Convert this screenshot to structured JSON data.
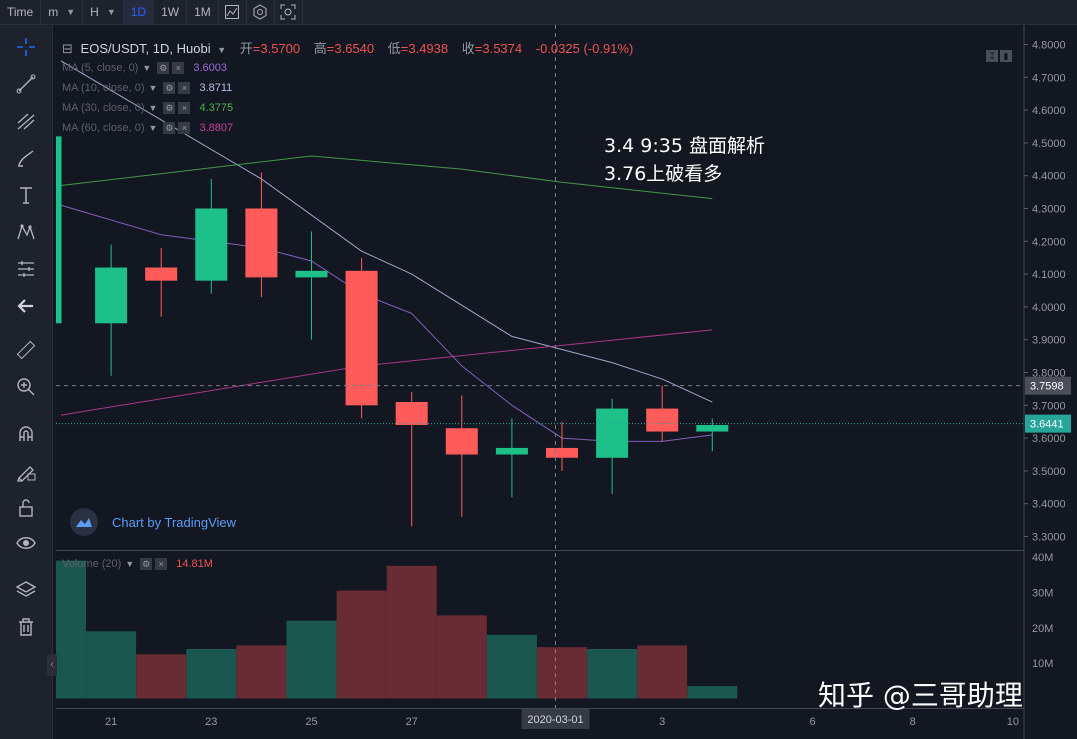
{
  "toolbar": {
    "time_label": "Time",
    "items": [
      "m",
      "H",
      "1D",
      "1W",
      "1M"
    ],
    "active": "1D",
    "icons": [
      "bar-style-icon",
      "indicators-icon",
      "screenshot-icon"
    ]
  },
  "left_tools": [
    "crosshair-icon",
    "trend-line-icon",
    "pitchfork-icon",
    "brush-icon",
    "text-icon",
    "pattern-icon",
    "forecast-icon",
    "back-arrow-icon",
    "ruler-icon",
    "zoom-in-icon",
    "magnet-icon",
    "lock-pencil-icon",
    "unlock-icon",
    "eye-icon",
    "layers-icon",
    "trash-icon"
  ],
  "legend": {
    "symbol": "EOS/USDT, 1D, Huobi",
    "open_label": "开",
    "open": "3.5700",
    "high_label": "高",
    "high": "3.6540",
    "low_label": "低",
    "low": "3.4938",
    "close_label": "收",
    "close": "3.5374",
    "change": "-0.0325 (-0.91%)"
  },
  "ma_legend": [
    {
      "label": "MA (5, close, 0)",
      "value": "3.6003",
      "color": "#9c6bd6"
    },
    {
      "label": "MA (10, close, 0)",
      "value": "3.8711",
      "color": "#b3c1e6"
    },
    {
      "label": "MA (30, close, 0)",
      "value": "4.3775",
      "color": "#4caf50"
    },
    {
      "label": "MA (60, close, 0)",
      "value": "3.8807",
      "color": "#c2409c"
    }
  ],
  "annotation": {
    "line1": "3.4 9:35 盘面解析",
    "line2": "3.76上破看多"
  },
  "brand": "Chart by TradingView",
  "watermark": "知乎 @三哥助理",
  "volume_legend": {
    "label": "Volume (20)",
    "value": "14.81M"
  },
  "price_badges": {
    "dashed": "3.7598",
    "current": "3.6441"
  },
  "crosshair_date": "2020-03-01",
  "colors": {
    "up": "#26a69a",
    "down": "#ef5350",
    "up_body": "#1ec08a",
    "down_body": "#ff5b5b",
    "bg": "#131722"
  },
  "chart_data": {
    "type": "candlestick",
    "title": "EOS/USDT, 1D, Huobi",
    "ylim": [
      3.22,
      4.83
    ],
    "y_ticks": [
      "4.8000",
      "4.7000",
      "4.6000",
      "4.5000",
      "4.4000",
      "4.3000",
      "4.2000",
      "4.1000",
      "4.0000",
      "3.9000",
      "3.8000",
      "3.7000",
      "3.6000",
      "3.5000",
      "3.4000",
      "3.3000"
    ],
    "x_ticks": [
      {
        "label": "21",
        "i": 1
      },
      {
        "label": "23",
        "i": 3
      },
      {
        "label": "25",
        "i": 5
      },
      {
        "label": "27",
        "i": 7
      },
      {
        "label": "3",
        "i": 12
      },
      {
        "label": "6",
        "i": 15
      },
      {
        "label": "8",
        "i": 17
      },
      {
        "label": "10",
        "i": 19
      }
    ],
    "candles": [
      {
        "i": 0,
        "open": 3.95,
        "high": 4.52,
        "low": 3.95,
        "close": 4.52
      },
      {
        "i": 1,
        "open": 3.95,
        "high": 4.19,
        "low": 3.79,
        "close": 4.12
      },
      {
        "i": 2,
        "open": 4.12,
        "high": 4.18,
        "low": 3.97,
        "close": 4.08
      },
      {
        "i": 3,
        "open": 4.08,
        "high": 4.39,
        "low": 4.04,
        "close": 4.3
      },
      {
        "i": 4,
        "open": 4.3,
        "high": 4.41,
        "low": 4.03,
        "close": 4.09
      },
      {
        "i": 5,
        "open": 4.09,
        "high": 4.23,
        "low": 3.9,
        "close": 4.11
      },
      {
        "i": 6,
        "open": 4.11,
        "high": 4.15,
        "low": 3.66,
        "close": 3.7
      },
      {
        "i": 7,
        "open": 3.71,
        "high": 3.74,
        "low": 3.33,
        "close": 3.64
      },
      {
        "i": 8,
        "open": 3.63,
        "high": 3.73,
        "low": 3.36,
        "close": 3.55
      },
      {
        "i": 9,
        "open": 3.55,
        "high": 3.66,
        "low": 3.42,
        "close": 3.57
      },
      {
        "i": 10,
        "open": 3.57,
        "high": 3.65,
        "low": 3.5,
        "close": 3.54
      },
      {
        "i": 11,
        "open": 3.54,
        "high": 3.72,
        "low": 3.43,
        "close": 3.69
      },
      {
        "i": 12,
        "open": 3.69,
        "high": 3.76,
        "low": 3.59,
        "close": 3.62
      },
      {
        "i": 13,
        "open": 3.62,
        "high": 3.66,
        "low": 3.56,
        "close": 3.64
      }
    ],
    "ma_series": [
      {
        "name": "MA (5, close, 0)",
        "color": "#9c6bd6",
        "points": [
          [
            0,
            4.31
          ],
          [
            2,
            4.22
          ],
          [
            4,
            4.18
          ],
          [
            5,
            4.14
          ],
          [
            6,
            4.04
          ],
          [
            7,
            3.98
          ],
          [
            8,
            3.82
          ],
          [
            9,
            3.7
          ],
          [
            10,
            3.6
          ],
          [
            11,
            3.59
          ],
          [
            12,
            3.59
          ],
          [
            13,
            3.61
          ]
        ]
      },
      {
        "name": "MA (10, close, 0)",
        "color": "#b3c1e6",
        "points": [
          [
            0,
            4.75
          ],
          [
            4,
            4.39
          ],
          [
            6,
            4.17
          ],
          [
            7,
            4.1
          ],
          [
            9,
            3.91
          ],
          [
            11,
            3.83
          ],
          [
            12,
            3.78
          ],
          [
            13,
            3.71
          ]
        ]
      },
      {
        "name": "MA (30, close, 0)",
        "color": "#4caf50",
        "points": [
          [
            0,
            4.37
          ],
          [
            5,
            4.46
          ],
          [
            8,
            4.42
          ],
          [
            10,
            4.38
          ],
          [
            13,
            4.33
          ]
        ]
      },
      {
        "name": "MA (60, close, 0)",
        "color": "#c2409c",
        "points": [
          [
            0,
            3.67
          ],
          [
            6,
            3.82
          ],
          [
            13,
            3.93
          ]
        ]
      }
    ],
    "volume": {
      "ylim": [
        0,
        40
      ],
      "y_ticks": [
        "40M",
        "30M",
        "20M",
        "10M"
      ],
      "values": [
        39,
        19,
        12.5,
        14,
        15,
        22,
        30.5,
        37.5,
        23.5,
        18,
        14.5,
        14,
        15,
        3.5
      ]
    },
    "dashed_level": 3.7598,
    "current_level": 3.6441
  }
}
